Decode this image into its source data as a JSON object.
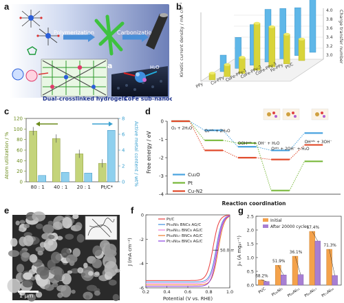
{
  "panel_labels": {
    "a": "a",
    "b": "b",
    "c": "c",
    "d": "d",
    "e": "e",
    "f": "f",
    "g": "g"
  },
  "panel_a": {
    "step1": "Polymerization",
    "step2": "Carbonization",
    "hydrogel_label": "Dual-crosslinked hydrogels",
    "cluster_label": "CoFe sub-nanoclusters",
    "inset_label": "a",
    "h2o": "H₂O"
  },
  "chart_data": [
    {
      "panel": "b",
      "type": "bar",
      "categories": [
        "PPy",
        "Cu-PPy",
        "CoFe-PPy-1",
        "CoFe-PPy-2",
        "CoFe-PPy-3",
        "Fe-PPy",
        "Pt/C"
      ],
      "series": [
        {
          "name": "Kinetic current density",
          "values": [
            5,
            9,
            12,
            35,
            30,
            22,
            16
          ]
        },
        {
          "name": "Charge transfer number",
          "values": [
            3.2,
            3.5,
            3.7,
            3.95,
            3.9,
            3.85,
            4.0
          ]
        }
      ],
      "ylabel": "Kinetic current density / mA cm⁻²",
      "y2label": "Charge transfer number",
      "y2_ticks": [
        "3.0",
        "3.2",
        "3.4",
        "3.6",
        "3.8",
        "4.0"
      ]
    },
    {
      "panel": "c",
      "type": "bar",
      "categories": [
        "80 : 1",
        "40 : 1",
        "20 : 1",
        "Pt/C*"
      ],
      "series": [
        {
          "name": "Atom utilization",
          "values": [
            96,
            82,
            53,
            35
          ]
        },
        {
          "name": "Active metal content",
          "values": [
            0.8,
            1.2,
            1.1,
            6.5
          ]
        }
      ],
      "ylabel": "Atom utilization / %",
      "y2label": "Active metal content / wt%",
      "ylim": [
        0,
        120
      ],
      "y2lim": [
        0,
        8
      ],
      "y_ticks": [
        "0",
        "20",
        "40",
        "60",
        "80",
        "100",
        "120"
      ],
      "y2_ticks": [
        "0",
        "2",
        "4",
        "6",
        "8"
      ]
    },
    {
      "panel": "d",
      "type": "line",
      "title": "",
      "xlabel": "Reaction coordination",
      "ylabel": "Free energy / eV",
      "ylim": [
        -4,
        0
      ],
      "y_ticks": [
        "0",
        "-1",
        "-2",
        "-3",
        "-4"
      ],
      "step_labels": [
        "O₂ + 2H₂O",
        "O₂ᵃᵈˢ + 2H₂O",
        "OOHᵃᵈˢ + OH⁻ + H₂O",
        "Oᵃᵈˢ + 2OH⁻ + H₂O",
        "OHᵃᵈˢ + 3OH⁻"
      ],
      "series": [
        {
          "name": "Cu₂O",
          "values": [
            0,
            -0.5,
            -1.4,
            -1.6,
            -0.65
          ]
        },
        {
          "name": "Pt",
          "values": [
            0,
            -1.05,
            -1.2,
            -3.8,
            -2.2
          ]
        },
        {
          "name": "Cu-N2",
          "values": [
            0,
            -1.6,
            -2.0,
            -2.1,
            -1.3
          ]
        }
      ]
    },
    {
      "panel": "f",
      "type": "line",
      "xlabel": "Potential (V vs. RHE)",
      "ylabel": "J (mA cm⁻²)",
      "xlim": [
        0.2,
        1.0
      ],
      "ylim": [
        -6,
        0
      ],
      "x_ticks": [
        "0.2",
        "0.4",
        "0.6",
        "0.8",
        "1.0"
      ],
      "y_ticks": [
        "0",
        "-2",
        "-4",
        "-6"
      ],
      "annotation": "50.0 mV",
      "series": [
        {
          "name": "Pt/C",
          "half_wave": 0.84
        },
        {
          "name": "Pt₉₅Ni₅ BNCs AG/C",
          "half_wave": 0.87
        },
        {
          "name": "Pt₈₉Ni₁₁ BNCs AG/C",
          "half_wave": 0.875
        },
        {
          "name": "Pt₈₃Ni₁₇ BNCs AG/C",
          "half_wave": 0.89
        },
        {
          "name": "Pt₇₄Ni₂₆ BNCs AG/C",
          "half_wave": 0.88
        }
      ]
    },
    {
      "panel": "g",
      "type": "bar",
      "categories": [
        "Pt/C",
        "Pt₉₅Ni₅",
        "Pt₈₉Ni₁₁",
        "Pt₈₃Ni₁₇",
        "Pt₇₄Ni₂₆"
      ],
      "series": [
        {
          "name": "Initial",
          "values": [
            0.19,
            0.72,
            1.05,
            1.95,
            1.3
          ]
        },
        {
          "name": "After 20000 cycles",
          "values": [
            0.13,
            0.37,
            0.38,
            1.6,
            0.35
          ]
        }
      ],
      "percent_labels": [
        "68.2%",
        "51.9%",
        "36.1%",
        "17.4%",
        "71.3%"
      ],
      "ylabel": "Jₘ (A mgₚₜ⁻¹)",
      "ylim": [
        0,
        2.5
      ],
      "y_ticks": [
        "0.0",
        "0.5",
        "1.0",
        "1.5",
        "2.0",
        "2.5"
      ]
    }
  ],
  "panel_e": {
    "scale_bar": "1 μm"
  },
  "colors": {
    "b_bar": "#5fb7e8",
    "b_ball": "#d8d43a",
    "c_green": "#c4d47a",
    "c_blue": "#8fd0ee",
    "d_cu2o": "#4aa3df",
    "d_pt": "#78b83a",
    "d_cun2": "#e04a2a",
    "g_initial": "#f4a24b",
    "g_after": "#a77fd3",
    "f_lines": [
      "#e83a3a",
      "#3f8fe0",
      "#e87ad8",
      "#f07b2a",
      "#8a3ee0"
    ]
  }
}
